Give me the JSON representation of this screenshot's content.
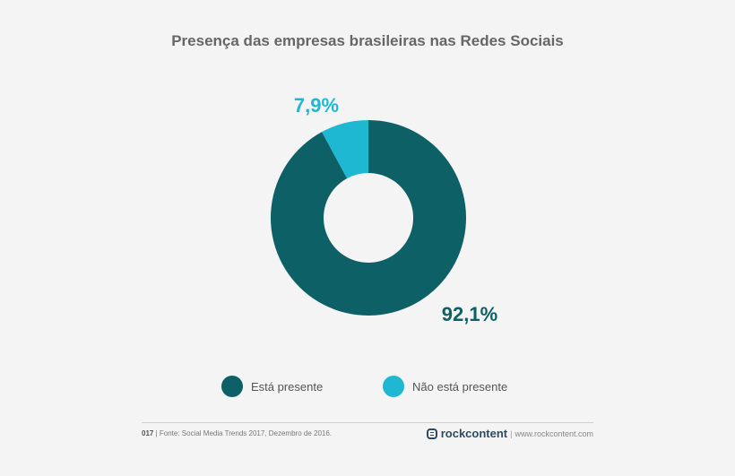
{
  "chart_data": {
    "type": "pie",
    "title": "Presença das empresas brasileiras nas Redes Sociais",
    "categories": [
      "Está presente",
      "Não está presente"
    ],
    "values": [
      92.1,
      7.9
    ],
    "value_labels": [
      "92,1%",
      "7,9%"
    ],
    "colors": [
      "#0c6066",
      "#1fb8d3"
    ],
    "donut": true,
    "legend_position": "bottom"
  },
  "footer": {
    "page": "017",
    "source": "| Fonte: Social Media Trends 2017, Dezembro de 2016.",
    "brand": "rockcontent",
    "separator": "|",
    "url": "www.rockcontent.com"
  }
}
